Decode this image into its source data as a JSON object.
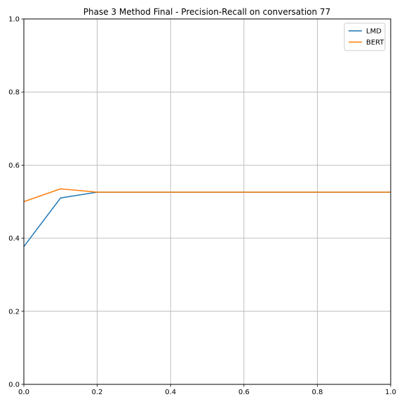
{
  "chart_data": {
    "type": "line",
    "title": "Phase 3 Method Final - Precision-Recall on conversation 77",
    "xlabel": "",
    "ylabel": "",
    "xlim": [
      0.0,
      1.0
    ],
    "ylim": [
      0.0,
      1.0
    ],
    "x_ticks": [
      "0.0",
      "0.2",
      "0.4",
      "0.6",
      "0.8",
      "1.0"
    ],
    "y_ticks": [
      "0.0",
      "0.2",
      "0.4",
      "0.6",
      "0.8",
      "1.0"
    ],
    "grid": true,
    "legend_position": "top-right",
    "x": [
      0.0,
      0.1,
      0.2,
      0.3,
      0.4,
      0.5,
      0.6,
      0.7,
      0.8,
      0.9,
      1.0
    ],
    "series": [
      {
        "name": "LMD",
        "color": "#1f77b4",
        "values": [
          0.377,
          0.51,
          0.526,
          0.526,
          0.526,
          0.526,
          0.526,
          0.526,
          0.526,
          0.526,
          0.526
        ]
      },
      {
        "name": "BERT",
        "color": "#ff7f0e",
        "values": [
          0.5,
          0.535,
          0.526,
          0.526,
          0.526,
          0.526,
          0.526,
          0.526,
          0.526,
          0.526,
          0.526
        ]
      }
    ]
  }
}
